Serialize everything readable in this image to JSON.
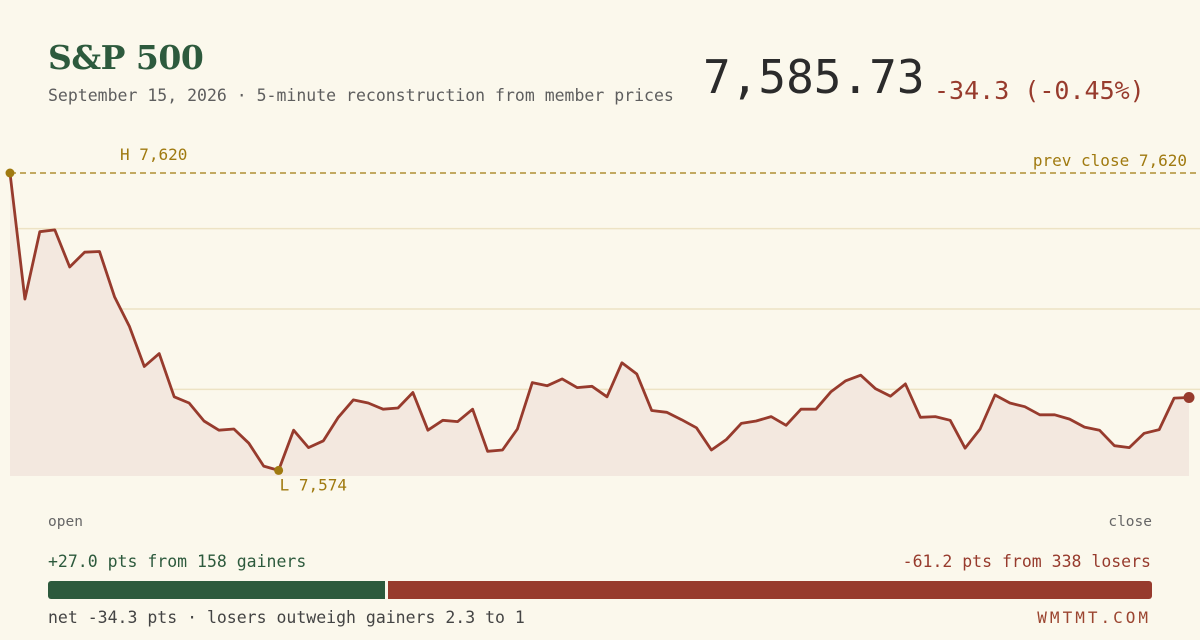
{
  "header": {
    "title": "S&P 500",
    "subtitle": "September 15, 2026 · 5-minute reconstruction from member prices",
    "price": "7,585.73",
    "change": "-34.3 (-0.45%)"
  },
  "labels": {
    "high": "H 7,620",
    "low": "L 7,574",
    "prev_close": "prev close 7,620",
    "open": "open",
    "close": "close"
  },
  "breadth": {
    "gainers_text": "+27.0 pts from 158 gainers",
    "losers_text": "-61.2 pts from 338 losers",
    "gainers_pts": 27.0,
    "losers_pts": 61.2,
    "net_text": "net -34.3 pts · losers outweigh gainers 2.3 to 1",
    "brand": "WMTMT.COM"
  },
  "colors": {
    "background": "#fbf8ec",
    "title_green": "#2d5a3d",
    "line_red": "#973b2d",
    "area_fill": "#f3e8df",
    "gold": "#a07a10",
    "grid": "#ede3c4"
  },
  "chart_data": {
    "type": "line",
    "title": "S&P 500",
    "x_start": "open",
    "x_end": "close",
    "interval_minutes": 5,
    "prev_close": 7620,
    "high": 7620,
    "low": 7574,
    "close": 7585.73,
    "ylim": [
      7571,
      7623
    ],
    "gridlines": [
      7611,
      7598,
      7585
    ],
    "series": [
      {
        "values": [
          7620,
          7599.6,
          7610.5,
          7610.8,
          7604.8,
          7607.2,
          7607.3,
          7600,
          7595.2,
          7588.7,
          7590.8,
          7583.8,
          7582.8,
          7579.9,
          7578.4,
          7578.6,
          7576.3,
          7572.6,
          7571.9,
          7578.4,
          7575.6,
          7576.7,
          7580.5,
          7583.3,
          7582.8,
          7581.8,
          7582,
          7584.5,
          7578.4,
          7580,
          7579.8,
          7581.8,
          7575,
          7575.2,
          7578.6,
          7586.1,
          7585.6,
          7586.7,
          7585.3,
          7585.5,
          7583.8,
          7589.3,
          7587.5,
          7581.6,
          7581.3,
          7580.1,
          7578.8,
          7575.2,
          7576.9,
          7579.5,
          7579.9,
          7580.6,
          7579.2,
          7581.8,
          7581.8,
          7584.6,
          7586.4,
          7587.3,
          7585.1,
          7583.9,
          7585.9,
          7580.5,
          7580.6,
          7580,
          7575.5,
          7578.6,
          7584.1,
          7582.8,
          7582.2,
          7580.9,
          7580.9,
          7580.2,
          7578.9,
          7578.4,
          7575.9,
          7575.6,
          7577.9,
          7578.5,
          7583.6,
          7583.7
        ]
      }
    ]
  }
}
